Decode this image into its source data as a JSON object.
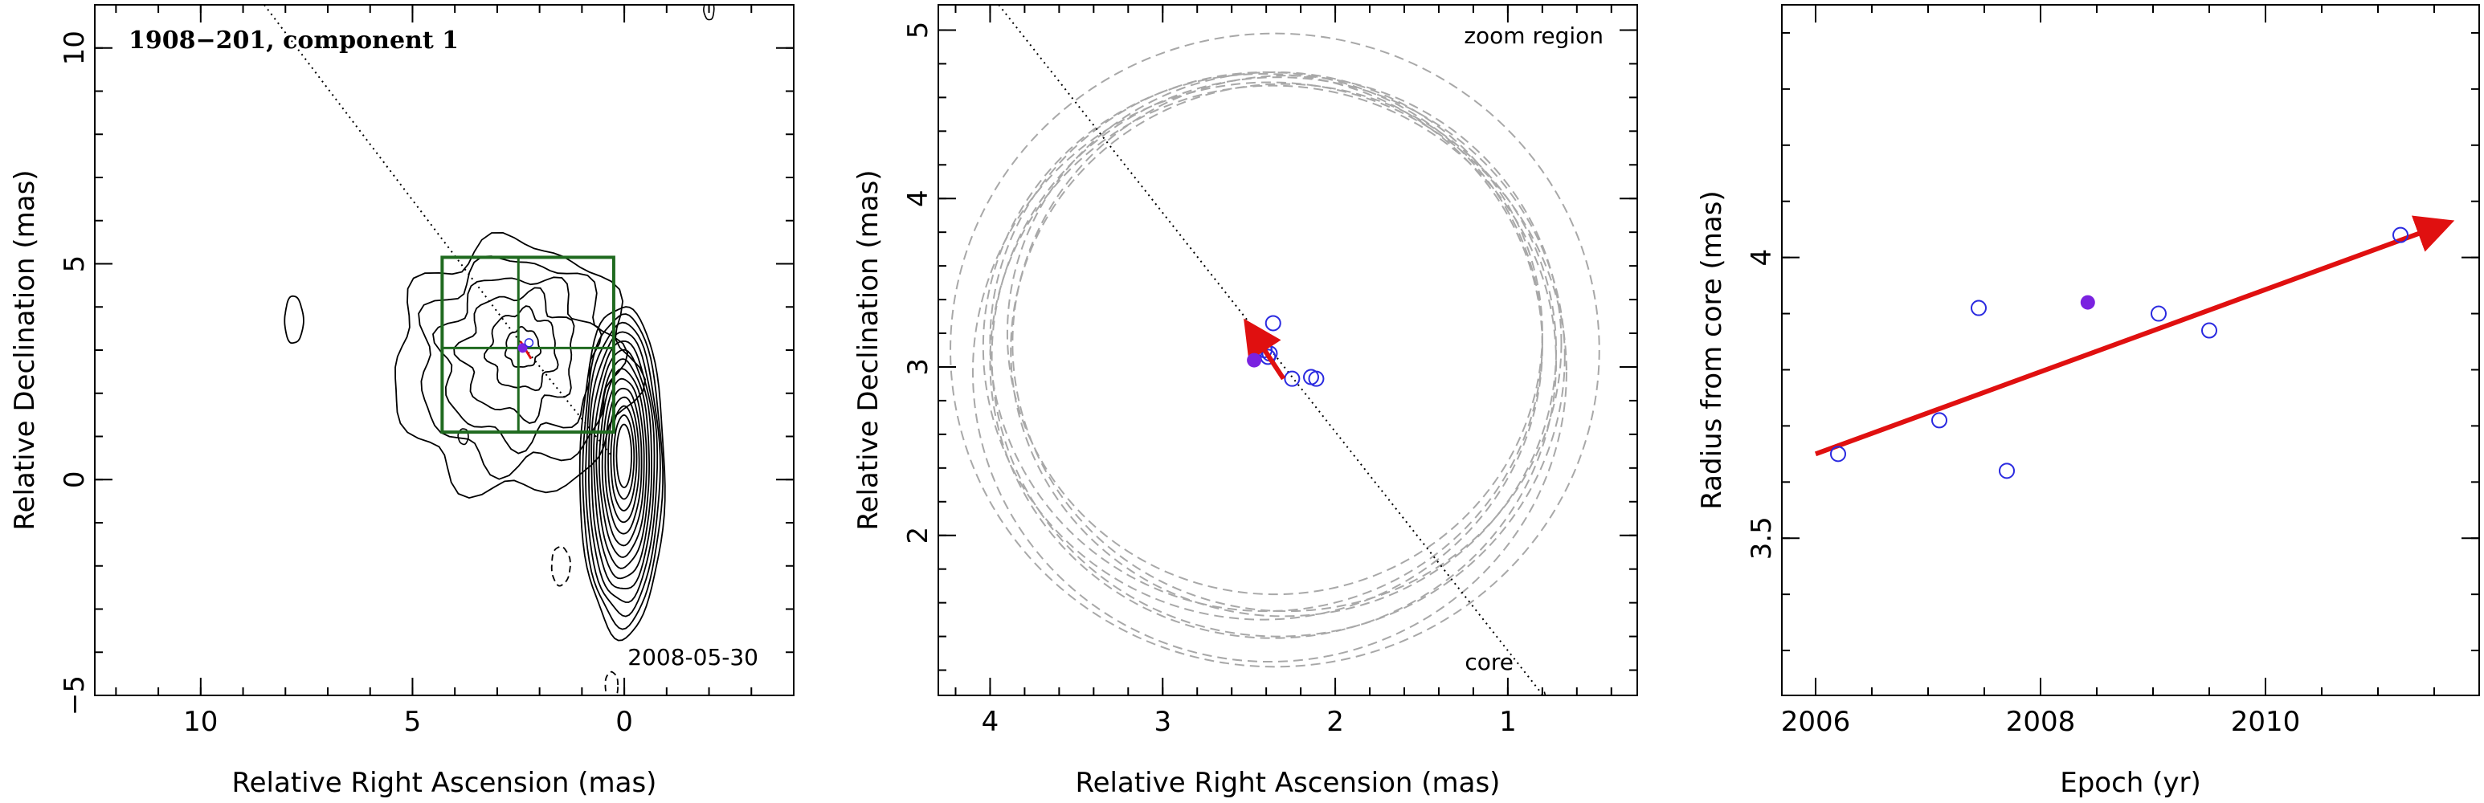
{
  "chart_data": [
    {
      "type": "contour",
      "title": "1908−201, component 1",
      "xlabel": "Relative Right Ascension (mas)",
      "ylabel": "Relative Declination (mas)",
      "xlim": [
        12.5,
        -4.0
      ],
      "ylim": [
        -5,
        11
      ],
      "xticks": [
        10,
        5,
        0
      ],
      "yticks": [
        -5,
        0,
        5,
        10
      ],
      "ytick_labels": [
        "−5",
        "0",
        "5",
        "10"
      ],
      "epoch_label": "2008-05-30",
      "zoom_box": {
        "x": [
          4.3,
          0.25
        ],
        "y": [
          1.1,
          5.15
        ]
      },
      "zoom_cross": {
        "x": 2.5,
        "y": 3.05
      },
      "direction_line": [
        [
          8.5,
          11
        ],
        [
          2.35,
          3.05
        ]
      ],
      "component_marker": {
        "x": 2.4,
        "y": 3.05
      },
      "colors": {
        "contour": "#000000",
        "box": "#1f6a1f",
        "vector": "#e01010",
        "marker": "#7a22e0"
      }
    },
    {
      "type": "scatter",
      "xlabel": "Relative Right Ascension (mas)",
      "ylabel": "Relative Declination (mas)",
      "xlim": [
        4.3,
        0.25
      ],
      "ylim": [
        1.05,
        5.15
      ],
      "xticks": [
        4,
        3,
        2,
        1
      ],
      "yticks": [
        2,
        3,
        4,
        5
      ],
      "zoom_label": "zoom region",
      "core_label": "core",
      "points": [
        {
          "x": 2.36,
          "y": 3.26
        },
        {
          "x": 2.38,
          "y": 3.08
        },
        {
          "x": 2.39,
          "y": 3.06
        },
        {
          "x": 2.25,
          "y": 2.93
        },
        {
          "x": 2.14,
          "y": 2.94
        },
        {
          "x": 2.11,
          "y": 2.93
        },
        {
          "x": 2.41,
          "y": 3.1
        }
      ],
      "highlight_point": {
        "x": 2.47,
        "y": 3.04
      },
      "vector": {
        "from": [
          2.3,
          2.93
        ],
        "to": [
          2.5,
          3.24
        ]
      },
      "direction_line": [
        [
          3.95,
          5.15
        ],
        [
          0.78,
          1.03
        ]
      ],
      "beam_circles": [
        {
          "cx": 2.35,
          "cy": 3.1,
          "r": 1.88
        },
        {
          "cx": 2.38,
          "cy": 2.97,
          "r": 1.72
        },
        {
          "cx": 2.33,
          "cy": 3.06,
          "r": 1.66
        },
        {
          "cx": 2.4,
          "cy": 3.15,
          "r": 1.6
        },
        {
          "cx": 2.35,
          "cy": 3.2,
          "r": 1.55
        },
        {
          "cx": 2.36,
          "cy": 3.03,
          "r": 1.64
        },
        {
          "cx": 2.3,
          "cy": 3.1,
          "r": 1.58
        },
        {
          "cx": 2.42,
          "cy": 3.12,
          "r": 1.62
        },
        {
          "cx": 2.28,
          "cy": 3.14,
          "r": 1.59
        }
      ],
      "colors": {
        "points": "#2a2ae0",
        "highlight": "#7a22e0",
        "vector": "#e01010",
        "circles": "#a8a8a8"
      }
    },
    {
      "type": "scatter",
      "xlabel": "Epoch (yr)",
      "ylabel": "Radius from core (mas)",
      "xlim": [
        2005.7,
        2011.9
      ],
      "ylim": [
        3.22,
        4.45
      ],
      "xticks": [
        2006,
        2008,
        2010
      ],
      "yticks": [
        3.5,
        4.0
      ],
      "ytick_labels": [
        "3.5",
        "4"
      ],
      "points": [
        {
          "x": 2006.2,
          "y": 3.65
        },
        {
          "x": 2007.1,
          "y": 3.71
        },
        {
          "x": 2007.45,
          "y": 3.91
        },
        {
          "x": 2007.7,
          "y": 3.62
        },
        {
          "x": 2009.05,
          "y": 3.9
        },
        {
          "x": 2009.5,
          "y": 3.87
        },
        {
          "x": 2011.2,
          "y": 4.04
        }
      ],
      "highlight_point": {
        "x": 2008.42,
        "y": 3.92
      },
      "fit_line": {
        "from": [
          2006.0,
          3.65
        ],
        "to": [
          2011.6,
          4.06
        ]
      },
      "colors": {
        "points": "#2a2ae0",
        "highlight": "#7a22e0",
        "fit": "#e01010"
      }
    }
  ]
}
